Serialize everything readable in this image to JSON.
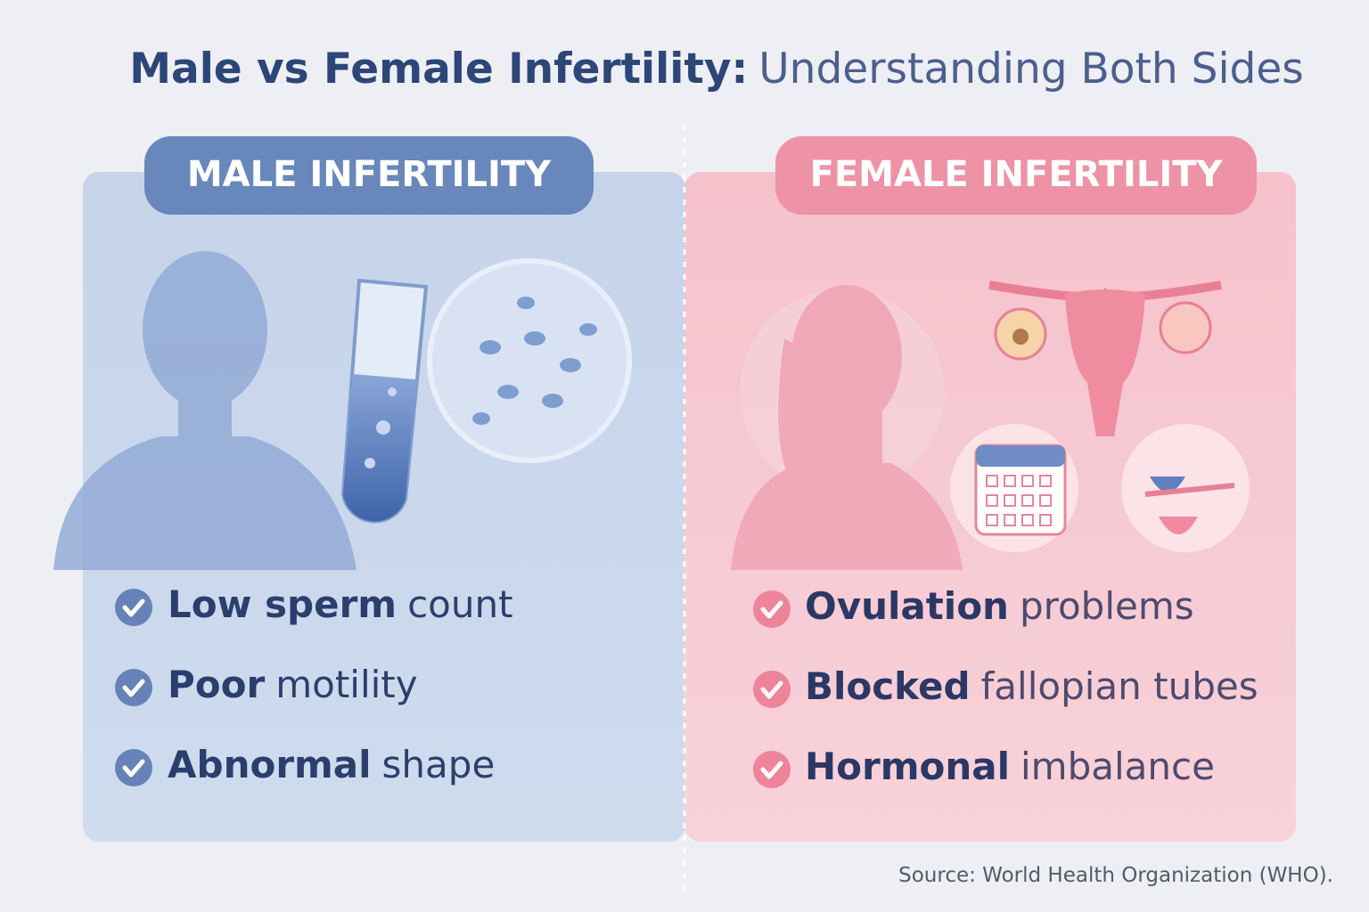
{
  "title": {
    "bold": "Male vs Female Infertility:",
    "regular": "Understanding Both Sides"
  },
  "panels": [
    {
      "heading": "MALE INFERTILITY",
      "items": [
        {
          "bold": "Low sperm",
          "regular": "count"
        },
        {
          "bold": "Poor",
          "regular": "motility"
        },
        {
          "bold": "Abnormal",
          "regular": "shape"
        }
      ]
    },
    {
      "heading": "FEMALE INFERTILITY",
      "items": [
        {
          "bold": "Ovulation",
          "regular": "problems"
        },
        {
          "bold": "Blocked",
          "regular": "fallopian tubes"
        },
        {
          "bold": "Hormonal",
          "regular": "imbalance"
        }
      ]
    }
  ],
  "source": "Source: World Health Organization (WHO)."
}
